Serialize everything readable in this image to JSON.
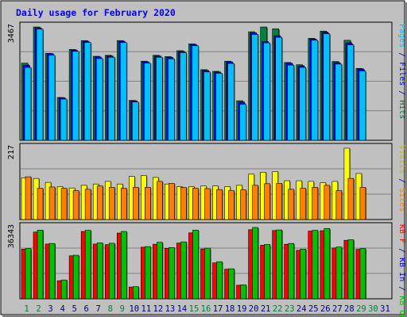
{
  "chart_data": [
    {
      "type": "bar",
      "title": "Daily usage for February 2020",
      "ylabel_max": "3467",
      "right_label": [
        {
          "text": "Pages",
          "color": "#00c0ff"
        },
        {
          "text": " / ",
          "color": "#000080"
        },
        {
          "text": "Files",
          "color": "#0000ff"
        },
        {
          "text": " / ",
          "color": "#000080"
        },
        {
          "text": "Hits",
          "color": "#008040"
        }
      ],
      "categories": [
        "1",
        "2",
        "3",
        "4",
        "5",
        "6",
        "7",
        "8",
        "9",
        "10",
        "11",
        "12",
        "13",
        "14",
        "15",
        "16",
        "17",
        "18",
        "19",
        "20",
        "21",
        "22",
        "23",
        "24",
        "25",
        "26",
        "27",
        "28",
        "29",
        "30",
        "31"
      ],
      "weekend_days": [
        1,
        2,
        8,
        9,
        15,
        16,
        22,
        23,
        29,
        30
      ],
      "ylim": [
        0,
        3467
      ],
      "series": [
        {
          "name": "Hits",
          "color": "#008040",
          "values": [
            2360,
            3467,
            2660,
            1310,
            2780,
            3050,
            2570,
            2600,
            3050,
            1220,
            2420,
            2600,
            2560,
            2740,
            2950,
            2160,
            2110,
            2420,
            1210,
            3320,
            3467,
            3410,
            2380,
            2310,
            3120,
            3340,
            2410,
            3060,
            2200,
            null,
            null
          ]
        },
        {
          "name": "Files",
          "color": "#0000ff",
          "values": [
            2300,
            3440,
            2650,
            1300,
            2760,
            3030,
            2550,
            2580,
            3030,
            1210,
            2400,
            2580,
            2540,
            2720,
            2930,
            2140,
            2090,
            2400,
            1170,
            3290,
            3020,
            3200,
            2360,
            2280,
            3100,
            3310,
            2380,
            2980,
            2180,
            null,
            null
          ]
        },
        {
          "name": "Pages",
          "color": "#00c0ff",
          "values": [
            2230,
            3400,
            2600,
            1260,
            2720,
            2990,
            2500,
            2540,
            2990,
            1170,
            2360,
            2540,
            2490,
            2680,
            2890,
            2090,
            2050,
            2350,
            1100,
            3240,
            2980,
            3150,
            2300,
            2230,
            3060,
            3260,
            2330,
            2920,
            2120,
            null,
            null
          ]
        }
      ]
    },
    {
      "type": "bar",
      "ylabel_max": "217",
      "right_label": [
        {
          "text": "Visits",
          "color": "#c0c000"
        },
        {
          "text": " / ",
          "color": "#000080"
        },
        {
          "text": "Sites",
          "color": "#ff8000"
        }
      ],
      "ylim": [
        0,
        217
      ],
      "series": [
        {
          "name": "Visits",
          "color": "#ffff00",
          "values": [
            127,
            125,
            113,
            100,
            96,
            104,
            108,
            116,
            108,
            131,
            134,
            128,
            108,
            100,
            100,
            102,
            102,
            100,
            104,
            138,
            144,
            146,
            118,
            118,
            116,
            112,
            116,
            217,
            140,
            null,
            null
          ]
        },
        {
          "name": "Sites",
          "color": "#ff8000",
          "values": [
            130,
            95,
            99,
            95,
            88,
            92,
            102,
            98,
            95,
            98,
            98,
            116,
            110,
            98,
            95,
            94,
            91,
            88,
            90,
            104,
            109,
            110,
            92,
            95,
            98,
            104,
            88,
            125,
            98,
            null,
            null
          ]
        }
      ]
    },
    {
      "type": "bar",
      "ylabel_max": "36343",
      "right_label": [
        {
          "text": "KB F",
          "color": "#ff0000"
        },
        {
          "text": " / ",
          "color": "#000080"
        },
        {
          "text": "KB In",
          "color": "#0000ff"
        },
        {
          "text": " / ",
          "color": "#000080"
        },
        {
          "text": "KB Out",
          "color": "#00c000"
        }
      ],
      "ylim": [
        0,
        36343
      ],
      "series": [
        {
          "name": "KB F",
          "color": "#ff0000",
          "values": [
            25300,
            34000,
            27900,
            9200,
            21900,
            34300,
            27900,
            27600,
            33500,
            6000,
            26300,
            27800,
            25700,
            28400,
            33600,
            25400,
            18300,
            15100,
            6900,
            35200,
            27300,
            34800,
            27800,
            24700,
            34500,
            34700,
            25900,
            29800,
            25200,
            null,
            null
          ]
        },
        {
          "name": "KB Out",
          "color": "#00c000",
          "values": [
            25600,
            35000,
            28200,
            9600,
            22200,
            34900,
            28500,
            28300,
            34300,
            6200,
            26600,
            28800,
            26100,
            29000,
            35000,
            25800,
            18900,
            15300,
            7100,
            36343,
            27700,
            35100,
            28200,
            25300,
            34900,
            35800,
            26400,
            30100,
            25600,
            null,
            null
          ]
        }
      ]
    }
  ],
  "colors": {
    "background": "#c0c0c0",
    "title": "#0000ff",
    "tick_label": "#000080",
    "weekend_label": "#008040"
  }
}
